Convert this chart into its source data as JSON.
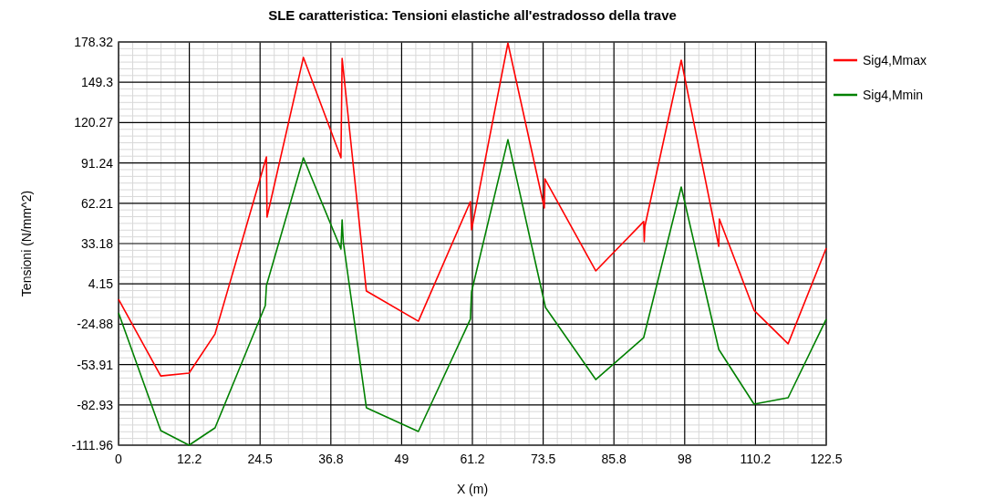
{
  "chart_data": {
    "type": "line",
    "title": "SLE caratteristica: Tensioni elastiche all'estradosso della trave",
    "xlabel": "X (m)",
    "ylabel": "Tensioni (N/mm^2)",
    "xlim": [
      0,
      122.5
    ],
    "xticks": [
      0,
      {
        "value": 12.25,
        "label": "12.2"
      },
      24.5,
      {
        "value": 36.75,
        "label": "36.8"
      },
      49,
      {
        "value": 61.25,
        "label": "61.2"
      },
      73.5,
      {
        "value": 85.75,
        "label": "85.8"
      },
      98,
      {
        "value": 110.25,
        "label": "110.2"
      },
      122.5
    ],
    "ylim": [
      -111.96,
      178.32
    ],
    "yticks": [
      -111.96,
      -82.93,
      -53.91,
      -24.88,
      4.15,
      33.18,
      62.21,
      91.24,
      120.27,
      149.3,
      178.32
    ],
    "grid": true,
    "legend": "top right",
    "marker": "none",
    "line_style": "solid",
    "series": [
      {
        "name": "Sig4,Mmax",
        "color": "#ff0000",
        "x": [
          0,
          7.3,
          12.2,
          16.7,
          25.6,
          25.7,
          32.0,
          38.5,
          38.7,
          42.9,
          51.9,
          60.9,
          61.1,
          67.4,
          73.7,
          73.8,
          82.6,
          90.9,
          91.0,
          91.1,
          97.4,
          103.9,
          104.0,
          110.0,
          115.9,
          122.5
        ],
        "values": [
          -6.9,
          -62.1,
          -60.1,
          -31.9,
          95.6,
          52.2,
          167.2,
          94.9,
          166.5,
          -1.0,
          -22.7,
          63.4,
          43.0,
          177.5,
          58.8,
          79.8,
          13.5,
          49.0,
          34.5,
          45.5,
          165.2,
          31.2,
          50.9,
          -14.8,
          -39.0,
          29.9
        ]
      },
      {
        "name": "Sig4,Mmin",
        "color": "#008000",
        "x": [
          0,
          7.3,
          12.2,
          16.7,
          25.4,
          25.6,
          32.0,
          38.5,
          38.7,
          38.9,
          42.9,
          51.9,
          60.9,
          61.1,
          67.4,
          73.9,
          82.6,
          90.9,
          97.4,
          103.9,
          110.0,
          115.9,
          122.5
        ],
        "values": [
          -16.7,
          -101.5,
          -111.96,
          -99.5,
          -11.5,
          3.0,
          94.9,
          29.2,
          50.2,
          34.5,
          -85.0,
          -102.1,
          -21.3,
          -1.6,
          108.0,
          -12.8,
          -64.7,
          -34.5,
          73.9,
          -43.0,
          -82.4,
          -77.8,
          -21.3
        ]
      }
    ]
  }
}
